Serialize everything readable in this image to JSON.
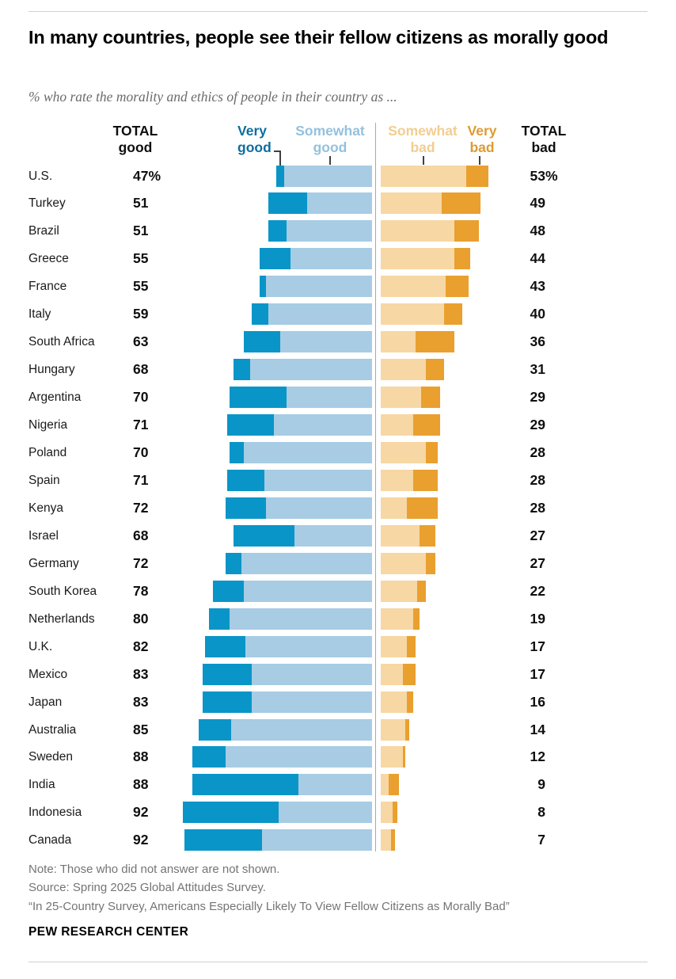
{
  "header": {
    "title": "In many countries, people see their fellow citizens as morally good",
    "subtitle": "% who rate the morality and ethics of people in their country as ..."
  },
  "columns": {
    "total_good": {
      "l1": "TOTAL",
      "l2": "good"
    },
    "very_good": {
      "l1": "Very",
      "l2": "good"
    },
    "somewhat_good": {
      "l1": "Somewhat",
      "l2": "good"
    },
    "somewhat_bad": {
      "l1": "Somewhat",
      "l2": "bad"
    },
    "very_bad": {
      "l1": "Very",
      "l2": "bad"
    },
    "total_bad": {
      "l1": "TOTAL",
      "l2": "bad"
    }
  },
  "chart_data": {
    "type": "bar",
    "subtype": "diverging-stacked-horizontal",
    "unit": "percent",
    "categories": [
      "U.S.",
      "Turkey",
      "Brazil",
      "Greece",
      "France",
      "Italy",
      "South Africa",
      "Hungary",
      "Argentina",
      "Nigeria",
      "Poland",
      "Spain",
      "Kenya",
      "Israel",
      "Germany",
      "South Korea",
      "Netherlands",
      "U.K.",
      "Mexico",
      "Japan",
      "Australia",
      "Sweden",
      "India",
      "Indonesia",
      "Canada"
    ],
    "series": [
      {
        "name": "Very good",
        "color": "#0a95c8",
        "values": [
          4,
          19,
          9,
          15,
          3,
          8,
          18,
          8,
          28,
          23,
          7,
          18,
          20,
          30,
          8,
          15,
          10,
          20,
          24,
          24,
          16,
          16,
          52,
          47,
          38
        ]
      },
      {
        "name": "Somewhat good",
        "color": "#a7cce4",
        "values": [
          43,
          32,
          42,
          40,
          52,
          51,
          45,
          60,
          42,
          48,
          63,
          53,
          52,
          38,
          64,
          63,
          70,
          62,
          59,
          59,
          69,
          72,
          36,
          46,
          54
        ]
      },
      {
        "name": "Somewhat bad",
        "color": "#f7d7a4",
        "values": [
          42,
          30,
          36,
          36,
          32,
          31,
          17,
          22,
          20,
          16,
          22,
          16,
          13,
          19,
          22,
          18,
          16,
          13,
          11,
          13,
          12,
          11,
          4,
          6,
          5
        ]
      },
      {
        "name": "Very bad",
        "color": "#e9a02f",
        "values": [
          11,
          19,
          12,
          8,
          11,
          9,
          19,
          9,
          9,
          13,
          6,
          12,
          15,
          8,
          5,
          4,
          3,
          4,
          6,
          3,
          2,
          1,
          5,
          2,
          2
        ]
      }
    ],
    "total_good_labels": [
      "47%",
      "51",
      "51",
      "55",
      "55",
      "59",
      "63",
      "68",
      "70",
      "71",
      "70",
      "71",
      "72",
      "68",
      "72",
      "78",
      "80",
      "82",
      "83",
      "83",
      "85",
      "88",
      "88",
      "92",
      "92"
    ],
    "total_bad_labels": [
      "53%",
      "49",
      "48",
      "44",
      "43",
      "40",
      "36",
      "31",
      "29",
      "29",
      "28",
      "28",
      "28",
      "27",
      "27",
      "22",
      "19",
      "17",
      "17",
      "16",
      "14",
      "12",
      "9",
      "8",
      "7"
    ],
    "title": "In many countries, people see their fellow citizens as morally good",
    "xlabel": "",
    "ylabel": "",
    "axis_range_each_side_pct": [
      0,
      100
    ],
    "grid": false,
    "legend_position": "top-inline-column-headers"
  },
  "footer": {
    "note": "Note: Those who did not answer are not shown.",
    "source": "Source: Spring 2025 Global Attitudes Survey.",
    "quote": "“In 25-Country Survey, Americans Especially Likely To View Fellow Citizens as Morally Bad”",
    "brand": "PEW RESEARCH CENTER"
  },
  "colors": {
    "very_good": "#0a95c8",
    "somewhat_good": "#a7cce4",
    "somewhat_bad": "#f7d7a4",
    "very_bad": "#e9a02f",
    "very_good_label": "#0d6e9e",
    "somewhat_good_label": "#94c1dd",
    "somewhat_bad_label": "#f2cd90",
    "very_bad_label": "#dc9c33",
    "divider": "#a8a8a8"
  }
}
